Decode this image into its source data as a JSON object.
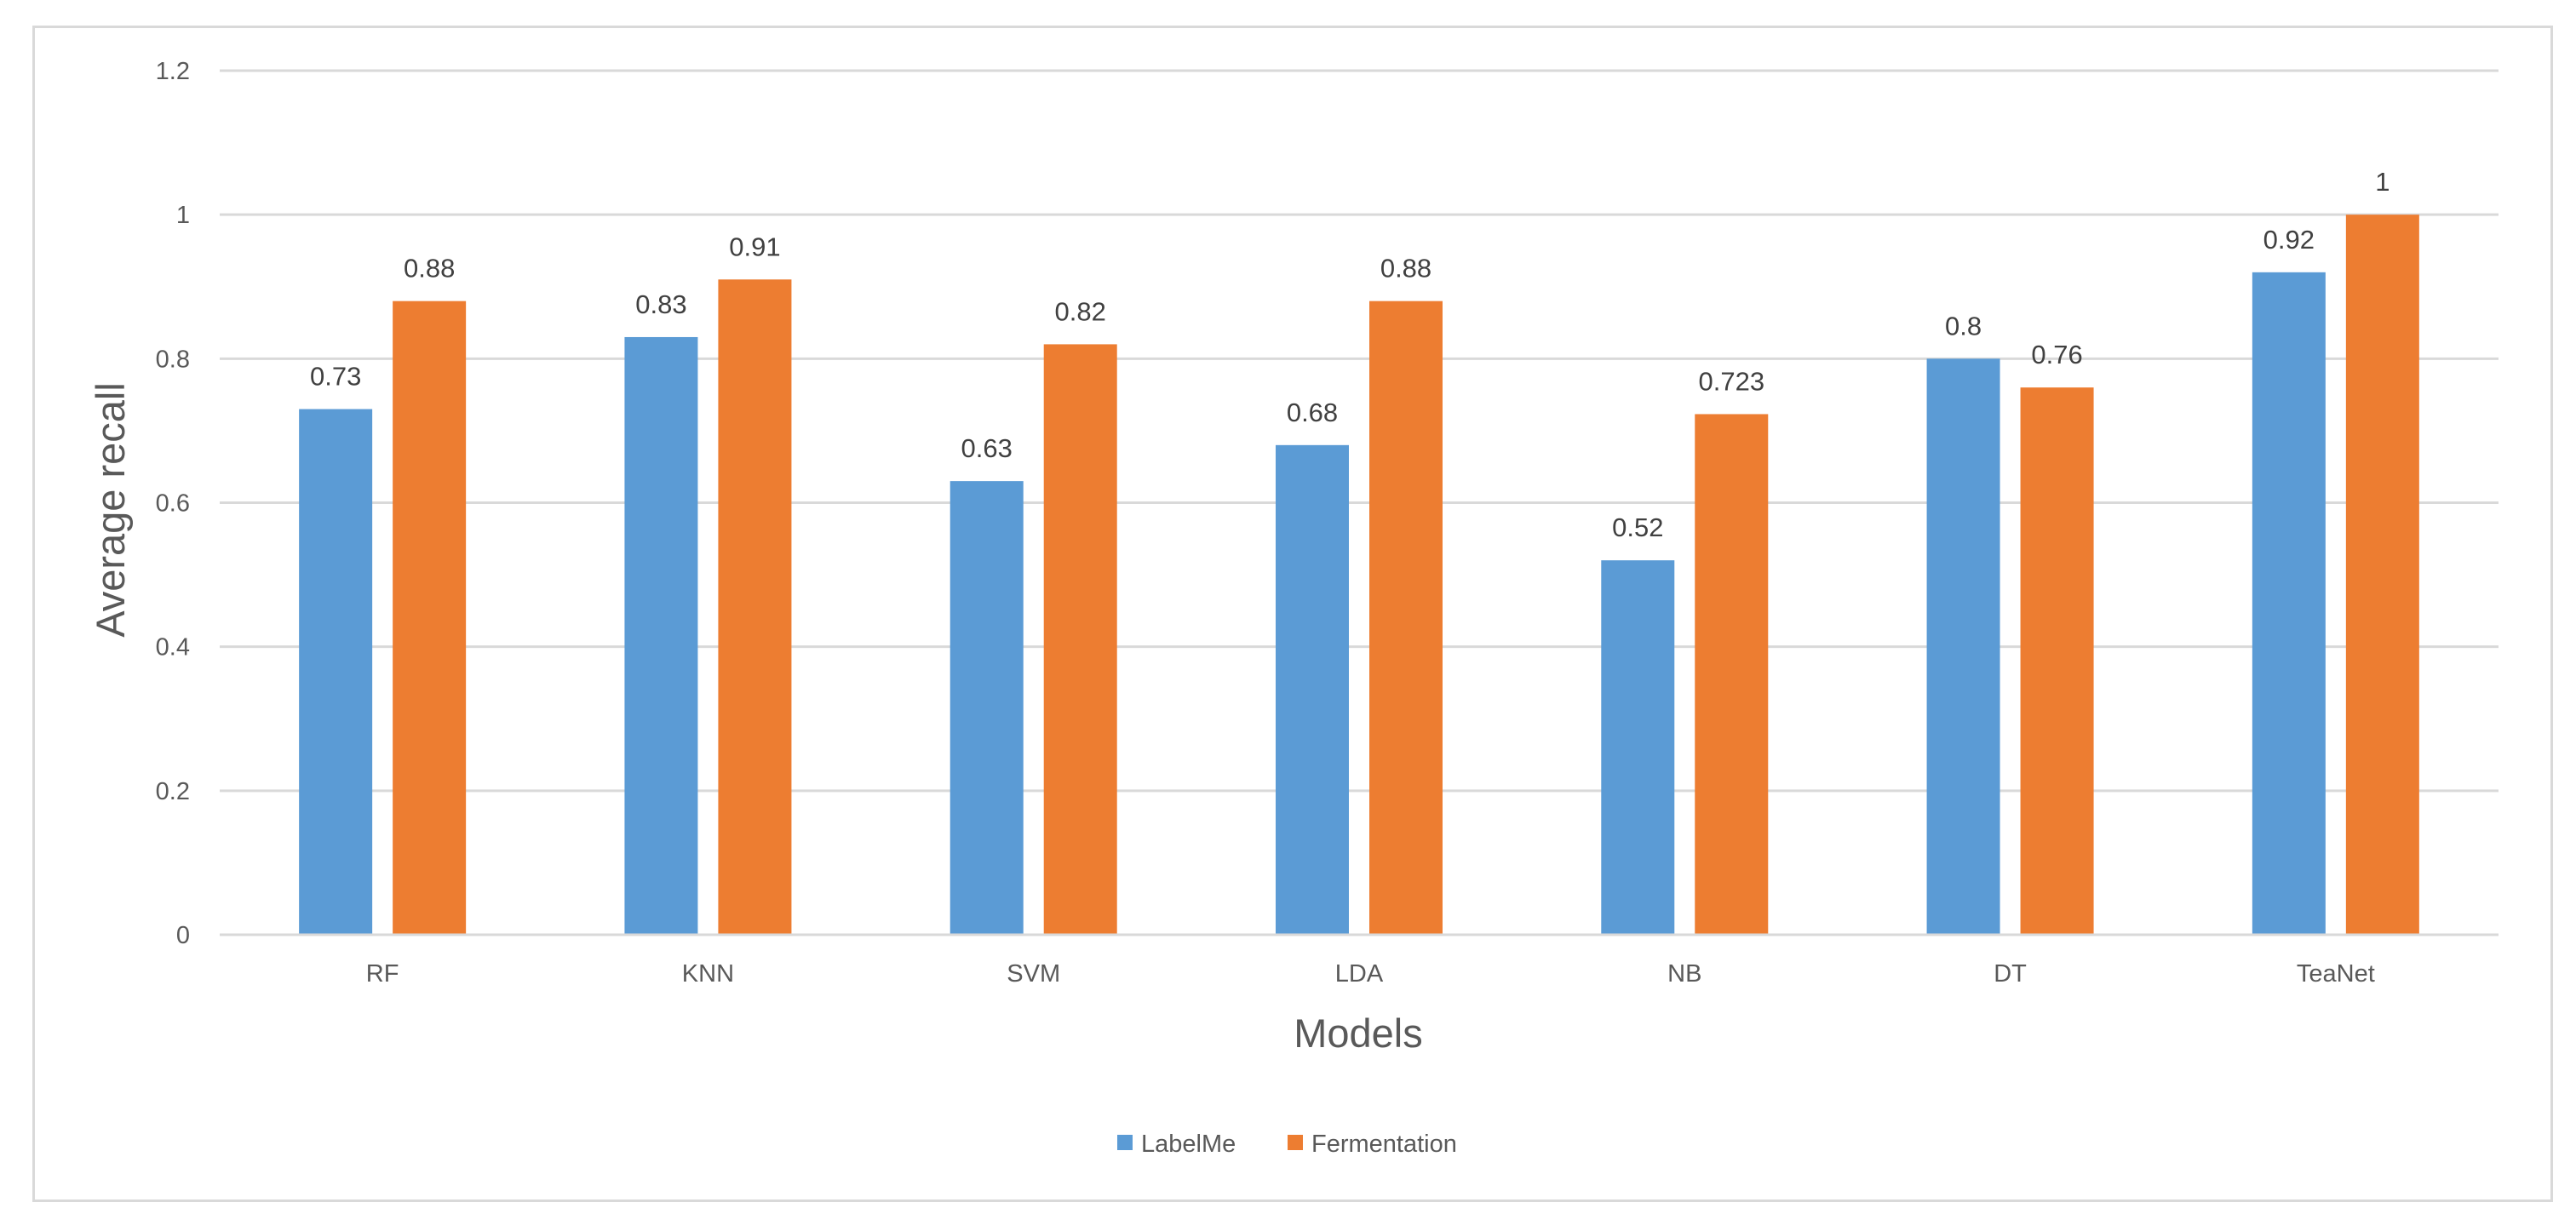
{
  "chart_data": {
    "type": "bar",
    "title": "",
    "xlabel": "Models",
    "ylabel": "Average recall",
    "categories": [
      "RF",
      "KNN",
      "SVM",
      "LDA",
      "NB",
      "DT",
      "TeaNet"
    ],
    "series": [
      {
        "name": "LabelMe",
        "color": "#5B9BD5",
        "values": [
          0.73,
          0.83,
          0.63,
          0.68,
          0.52,
          0.8,
          0.92
        ],
        "labels": [
          "0.73",
          "0.83",
          "0.63",
          "0.68",
          "0.52",
          "0.8",
          "0.92"
        ]
      },
      {
        "name": "Fermentation",
        "color": "#ED7D31",
        "values": [
          0.88,
          0.91,
          0.82,
          0.88,
          0.723,
          0.76,
          1
        ],
        "labels": [
          "0.88",
          "0.91",
          "0.82",
          "0.88",
          "0.723",
          "0.76",
          "1"
        ]
      }
    ],
    "ylim": [
      0,
      1.2
    ],
    "yticks": [
      "0",
      "0.2",
      "0.4",
      "0.6",
      "0.8",
      "1",
      "1.2"
    ],
    "grid": true,
    "legend_position": "bottom"
  }
}
